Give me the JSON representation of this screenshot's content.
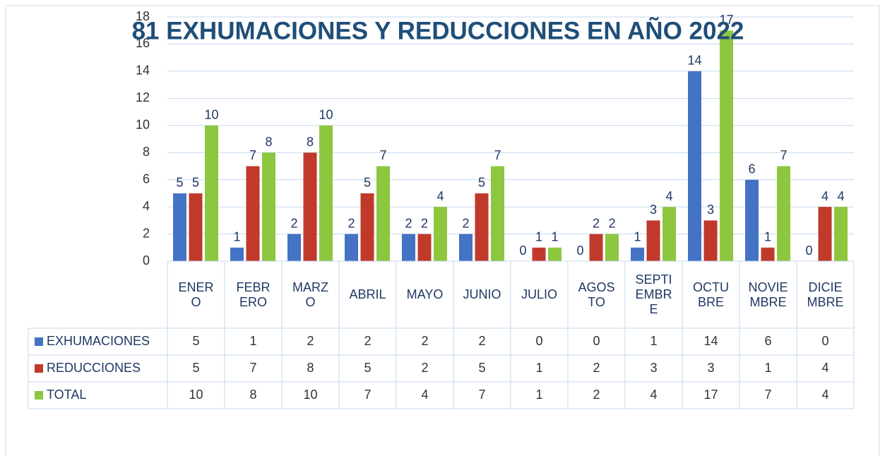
{
  "chart_data": {
    "type": "bar",
    "title": "81  EXHUMACIONES  Y REDUCCIONES  EN AÑO 2022",
    "categories": [
      "ENERO",
      "FEBRERO",
      "MARZO",
      "ABRIL",
      "MAYO",
      "JUNIO",
      "JULIO",
      "AGOSTO",
      "SEPTIEMBRE",
      "OCTUBRE",
      "NOVIEMBRE",
      "DICIEMBRE"
    ],
    "series": [
      {
        "name": "EXHUMACIONES",
        "color": "#4472c4",
        "values": [
          5,
          1,
          2,
          2,
          2,
          2,
          0,
          0,
          1,
          14,
          6,
          0
        ]
      },
      {
        "name": "REDUCCIONES",
        "color": "#c0392b",
        "values": [
          5,
          7,
          8,
          5,
          2,
          5,
          1,
          2,
          3,
          3,
          1,
          4
        ]
      },
      {
        "name": "TOTAL",
        "color": "#8dc63f",
        "values": [
          10,
          8,
          10,
          7,
          4,
          7,
          1,
          2,
          4,
          17,
          7,
          4
        ]
      }
    ],
    "ylim": [
      0,
      18
    ],
    "yticks": [
      0,
      2,
      4,
      6,
      8,
      10,
      12,
      14,
      16,
      18
    ],
    "grid": true
  }
}
